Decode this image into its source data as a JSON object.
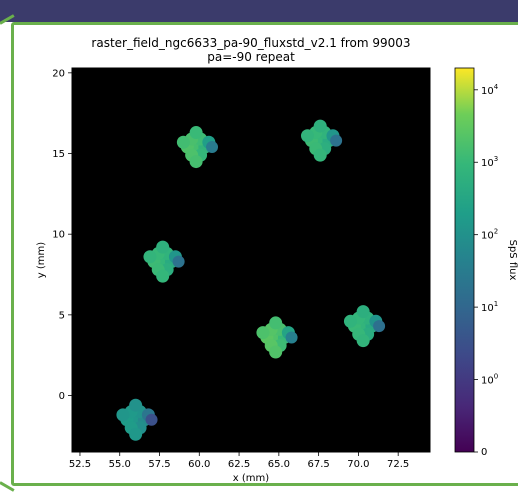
{
  "window": {
    "accent": "#3b3b6b",
    "frame_color": "#6ab04c"
  },
  "chart_data": {
    "type": "scatter",
    "title_line1": "raster_field_ngc6633_pa-90_fluxstd_v2.1 from 99003",
    "title_line2": "pa=-90 repeat",
    "xlabel": "x (mm)",
    "ylabel": "y (mm)",
    "xlim": [
      52.0,
      74.5
    ],
    "ylim": [
      -3.5,
      20.3
    ],
    "xticks": [
      52.5,
      55.0,
      57.5,
      60.0,
      62.5,
      65.0,
      67.5,
      70.0,
      72.5
    ],
    "yticks": [
      0,
      5,
      10,
      15,
      20
    ],
    "background": "#000000",
    "colorbar": {
      "label": "SpS flux",
      "scale": "symlog",
      "colormap": "viridis",
      "ticks": [
        {
          "text": "10",
          "sup": "0",
          "value": 1
        },
        {
          "text": "10",
          "sup": "1",
          "value": 10
        },
        {
          "text": "10",
          "sup": "2",
          "value": 100
        },
        {
          "text": "10",
          "sup": "3",
          "value": 1000
        },
        {
          "text": "10",
          "sup": "4",
          "value": 10000
        }
      ],
      "zero_label": "0",
      "max": 20000
    },
    "grid": false,
    "clusters": [
      {
        "x": 56.0,
        "y": -1.5,
        "flux": 150
      },
      {
        "x": 57.7,
        "y": 8.3,
        "flux": 900
      },
      {
        "x": 59.8,
        "y": 15.4,
        "flux": 1500
      },
      {
        "x": 64.8,
        "y": 3.6,
        "flux": 2000
      },
      {
        "x": 67.6,
        "y": 15.8,
        "flux": 900
      },
      {
        "x": 70.3,
        "y": 4.3,
        "flux": 800
      }
    ]
  }
}
